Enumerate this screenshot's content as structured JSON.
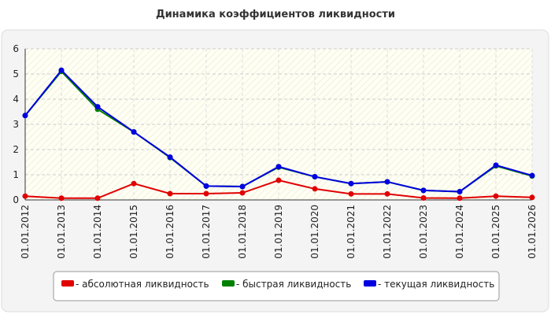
{
  "chart_data": {
    "type": "line",
    "title": "Динамика коэффициентов ликвидности",
    "categories": [
      "01.01.2012",
      "01.01.2013",
      "01.01.2014",
      "01.01.2015",
      "01.01.2016",
      "01.01.2017",
      "01.01.2018",
      "01.01.2019",
      "01.01.2020",
      "01.01.2021",
      "01.01.2022",
      "01.01.2023",
      "01.01.2024",
      "01.01.2025",
      "01.01.2026"
    ],
    "series": [
      {
        "name": "- абсолютная ликвидность",
        "color": "#e00000",
        "values": [
          0.15,
          0.07,
          0.07,
          0.65,
          0.25,
          0.25,
          0.28,
          0.78,
          0.44,
          0.24,
          0.24,
          0.08,
          0.07,
          0.15,
          0.1
        ]
      },
      {
        "name": "- быстрая ликвидность",
        "color": "#008000",
        "values": [
          3.35,
          5.1,
          3.6,
          2.7,
          1.68,
          0.55,
          0.53,
          1.3,
          0.92,
          0.65,
          0.72,
          0.38,
          0.33,
          1.35,
          0.95
        ]
      },
      {
        "name": "- текущая ликвидность",
        "color": "#0000e0",
        "values": [
          3.35,
          5.15,
          3.7,
          2.7,
          1.7,
          0.55,
          0.53,
          1.32,
          0.92,
          0.65,
          0.72,
          0.38,
          0.33,
          1.38,
          0.97
        ]
      }
    ],
    "ylim": [
      0,
      6
    ],
    "yticks": [
      0,
      1,
      2,
      3,
      4,
      5,
      6
    ],
    "grid": true
  }
}
